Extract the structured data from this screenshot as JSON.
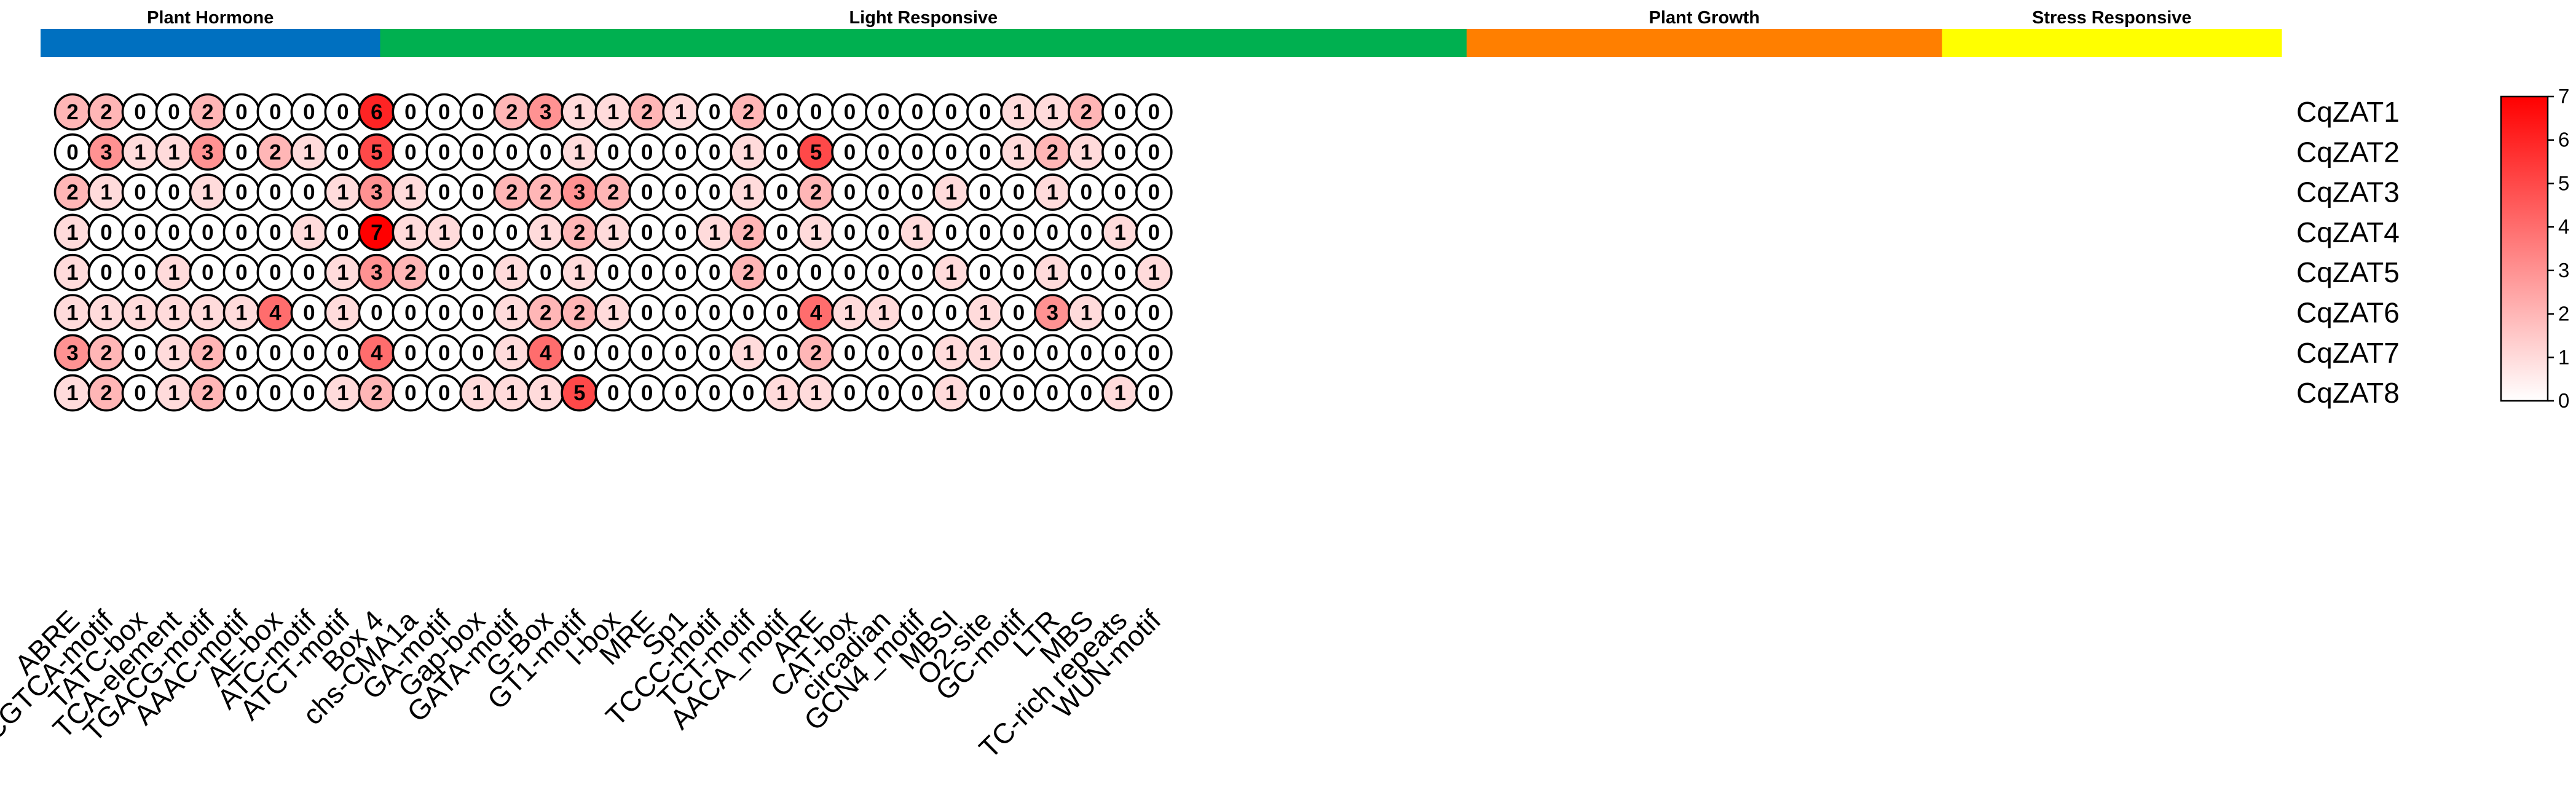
{
  "chart_data": {
    "type": "heatmap",
    "title": "",
    "categories_header": [
      {
        "name": "Plant Hormone",
        "color": "#0070C0",
        "count": 5
      },
      {
        "name": "Light Responsive",
        "color": "#00B050",
        "count": 16
      },
      {
        "name": "Plant Growth",
        "color": "#FF7F00",
        "count": 7
      },
      {
        "name": "Stress Responsive",
        "color": "#FFFF00",
        "count": 5
      }
    ],
    "columns": [
      "ABRE",
      "CGTCA-motif",
      "TATC-box",
      "TCA-element",
      "TGACG-motif",
      "AAAC-motif",
      "AE-box",
      "ATC-motif",
      "ATCT-motif",
      "Box 4",
      "chs-CMA1a",
      "GA-motif",
      "Gap-box",
      "GATA-motif",
      "G-Box",
      "GT1-motif",
      "I-box",
      "MRE",
      "Sp1",
      "TCCC-motif",
      "TCT-motif",
      "AACA_motif",
      "ARE",
      "CAT-box",
      "circadian",
      "GCN4_motif",
      "MBSI",
      "O2-site",
      "GC-motif",
      "LTR",
      "MBS",
      "TC-rich repeats",
      "WUN-motif"
    ],
    "rows": [
      "CqZAT1",
      "CqZAT2",
      "CqZAT3",
      "CqZAT4",
      "CqZAT5",
      "CqZAT6",
      "CqZAT7",
      "CqZAT8"
    ],
    "values": [
      [
        2,
        2,
        0,
        0,
        2,
        0,
        0,
        0,
        0,
        6,
        0,
        0,
        0,
        2,
        3,
        1,
        1,
        2,
        1,
        0,
        2,
        0,
        0,
        0,
        0,
        0,
        0,
        0,
        1,
        1,
        2,
        0,
        0
      ],
      [
        0,
        3,
        1,
        1,
        3,
        0,
        2,
        1,
        0,
        5,
        0,
        0,
        0,
        0,
        0,
        1,
        0,
        0,
        0,
        0,
        1,
        0,
        5,
        0,
        0,
        0,
        0,
        0,
        1,
        2,
        1,
        0,
        0
      ],
      [
        2,
        1,
        0,
        0,
        1,
        0,
        0,
        0,
        1,
        3,
        1,
        0,
        0,
        2,
        2,
        3,
        2,
        0,
        0,
        0,
        1,
        0,
        2,
        0,
        0,
        0,
        1,
        0,
        0,
        1,
        0,
        0,
        0
      ],
      [
        1,
        0,
        0,
        0,
        0,
        0,
        0,
        1,
        0,
        7,
        1,
        1,
        0,
        0,
        1,
        2,
        1,
        0,
        0,
        1,
        2,
        0,
        1,
        0,
        0,
        1,
        0,
        0,
        0,
        0,
        0,
        1,
        0
      ],
      [
        1,
        0,
        0,
        1,
        0,
        0,
        0,
        0,
        1,
        3,
        2,
        0,
        0,
        1,
        0,
        1,
        0,
        0,
        0,
        0,
        2,
        0,
        0,
        0,
        0,
        0,
        1,
        0,
        0,
        1,
        0,
        0,
        1
      ],
      [
        1,
        1,
        1,
        1,
        1,
        1,
        4,
        0,
        1,
        0,
        0,
        0,
        0,
        1,
        2,
        2,
        1,
        0,
        0,
        0,
        0,
        0,
        4,
        1,
        1,
        0,
        0,
        1,
        0,
        3,
        1,
        0,
        0
      ],
      [
        3,
        2,
        0,
        1,
        2,
        0,
        0,
        0,
        0,
        4,
        0,
        0,
        0,
        1,
        4,
        0,
        0,
        0,
        0,
        0,
        1,
        0,
        2,
        0,
        0,
        0,
        1,
        1,
        0,
        0,
        0,
        0,
        0
      ],
      [
        1,
        2,
        0,
        1,
        2,
        0,
        0,
        0,
        1,
        2,
        0,
        0,
        1,
        1,
        1,
        5,
        0,
        0,
        0,
        0,
        0,
        1,
        1,
        0,
        0,
        0,
        1,
        0,
        0,
        0,
        0,
        1,
        0
      ]
    ],
    "color_scale": {
      "min": 0,
      "max": 7,
      "low_color": "#FFFFFF",
      "high_color": "#FF0000",
      "ticks": [
        0,
        1,
        2,
        3,
        4,
        5,
        6,
        7
      ]
    }
  }
}
